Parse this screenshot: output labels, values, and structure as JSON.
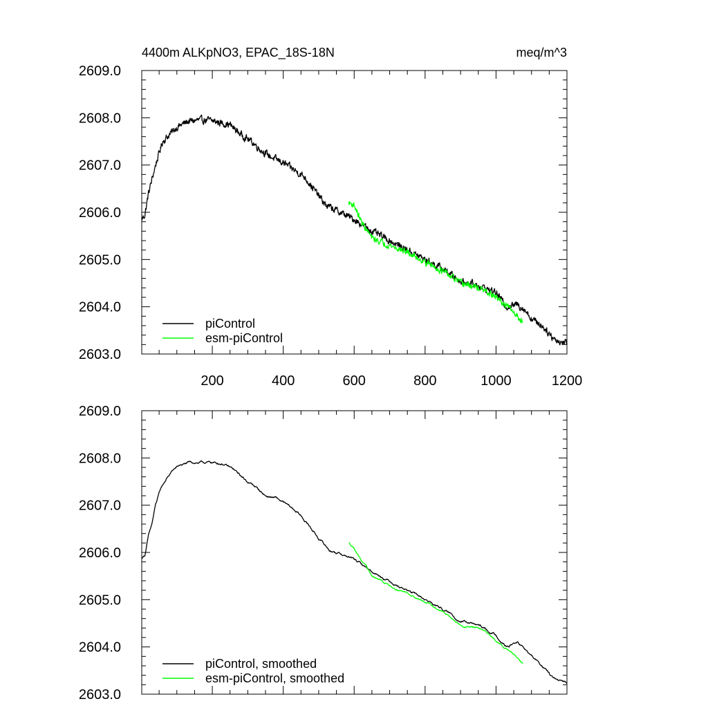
{
  "chart_data": [
    {
      "type": "line",
      "title": "4400m ALKpNO3, EPAC_18S-18N",
      "units": "meq/m^3",
      "xlabel": "",
      "ylabel": "",
      "xlim": [
        1,
        1200
      ],
      "ylim": [
        2603.0,
        2609.0
      ],
      "x_ticks": [
        200,
        400,
        600,
        800,
        1000,
        1200
      ],
      "x_tick_labels": [
        "200",
        "400",
        "600",
        "800",
        "1000",
        "1200"
      ],
      "y_ticks": [
        2603.0,
        2604.0,
        2605.0,
        2606.0,
        2607.0,
        2608.0,
        2609.0
      ],
      "y_tick_labels": [
        "2603.0",
        "2604.0",
        "2605.0",
        "2606.0",
        "2607.0",
        "2608.0",
        "2609.0"
      ],
      "legend_position": "bottom-left",
      "series": [
        {
          "name": "piControl",
          "color": "#000000",
          "noise": 0.11,
          "points": [
            [
              1,
              2605.85
            ],
            [
              10,
              2605.95
            ],
            [
              20,
              2606.4
            ],
            [
              30,
              2606.7
            ],
            [
              40,
              2607.0
            ],
            [
              50,
              2607.25
            ],
            [
              60,
              2607.5
            ],
            [
              80,
              2607.65
            ],
            [
              100,
              2607.8
            ],
            [
              130,
              2607.92
            ],
            [
              160,
              2607.95
            ],
            [
              190,
              2607.95
            ],
            [
              220,
              2607.9
            ],
            [
              250,
              2607.85
            ],
            [
              280,
              2607.65
            ],
            [
              310,
              2607.5
            ],
            [
              340,
              2607.3
            ],
            [
              370,
              2607.15
            ],
            [
              400,
              2607.05
            ],
            [
              430,
              2606.9
            ],
            [
              460,
              2606.75
            ],
            [
              490,
              2606.45
            ],
            [
              520,
              2606.15
            ],
            [
              560,
              2606.0
            ],
            [
              600,
              2605.85
            ],
            [
              650,
              2605.6
            ],
            [
              700,
              2605.4
            ],
            [
              750,
              2605.2
            ],
            [
              800,
              2605.0
            ],
            [
              850,
              2604.8
            ],
            [
              900,
              2604.55
            ],
            [
              950,
              2604.45
            ],
            [
              1000,
              2604.3
            ],
            [
              1030,
              2604.0
            ],
            [
              1060,
              2604.05
            ],
            [
              1080,
              2603.95
            ],
            [
              1100,
              2603.75
            ],
            [
              1130,
              2603.6
            ],
            [
              1160,
              2603.35
            ],
            [
              1180,
              2603.25
            ],
            [
              1200,
              2603.25
            ]
          ]
        },
        {
          "name": "esm-piControl",
          "color": "#00ff00",
          "noise": 0.1,
          "points": [
            [
              585,
              2606.2
            ],
            [
              600,
              2606.15
            ],
            [
              620,
              2605.8
            ],
            [
              650,
              2605.45
            ],
            [
              700,
              2605.3
            ],
            [
              750,
              2605.15
            ],
            [
              800,
              2604.95
            ],
            [
              850,
              2604.75
            ],
            [
              900,
              2604.5
            ],
            [
              950,
              2604.4
            ],
            [
              1000,
              2604.2
            ],
            [
              1040,
              2603.95
            ],
            [
              1075,
              2603.7
            ]
          ]
        }
      ]
    },
    {
      "type": "line",
      "title": "",
      "xlabel": "",
      "ylabel": "",
      "xlim": [
        1,
        1200
      ],
      "ylim": [
        2603.0,
        2609.0
      ],
      "y_ticks": [
        2603.0,
        2604.0,
        2605.0,
        2606.0,
        2607.0,
        2608.0,
        2609.0
      ],
      "y_tick_labels": [
        "2603.0",
        "2604.0",
        "2605.0",
        "2606.0",
        "2607.0",
        "2608.0",
        "2609.0"
      ],
      "legend_position": "bottom-left",
      "series": [
        {
          "name": "piControl, smoothed",
          "color": "#000000",
          "noise": 0.035,
          "points": [
            [
              1,
              2605.88
            ],
            [
              10,
              2605.95
            ],
            [
              20,
              2606.35
            ],
            [
              30,
              2606.6
            ],
            [
              40,
              2607.0
            ],
            [
              55,
              2607.35
            ],
            [
              70,
              2607.55
            ],
            [
              90,
              2607.75
            ],
            [
              110,
              2607.85
            ],
            [
              140,
              2607.9
            ],
            [
              170,
              2607.9
            ],
            [
              200,
              2607.9
            ],
            [
              230,
              2607.88
            ],
            [
              260,
              2607.75
            ],
            [
              290,
              2607.55
            ],
            [
              320,
              2607.4
            ],
            [
              350,
              2607.2
            ],
            [
              380,
              2607.15
            ],
            [
              410,
              2607.0
            ],
            [
              440,
              2606.85
            ],
            [
              470,
              2606.6
            ],
            [
              500,
              2606.3
            ],
            [
              530,
              2606.05
            ],
            [
              570,
              2605.95
            ],
            [
              600,
              2605.85
            ],
            [
              650,
              2605.6
            ],
            [
              700,
              2605.4
            ],
            [
              750,
              2605.2
            ],
            [
              800,
              2605.0
            ],
            [
              850,
              2604.8
            ],
            [
              900,
              2604.55
            ],
            [
              950,
              2604.45
            ],
            [
              1000,
              2604.25
            ],
            [
              1030,
              2604.0
            ],
            [
              1060,
              2604.1
            ],
            [
              1080,
              2603.95
            ],
            [
              1100,
              2603.8
            ],
            [
              1130,
              2603.6
            ],
            [
              1160,
              2603.35
            ],
            [
              1180,
              2603.25
            ],
            [
              1200,
              2603.25
            ]
          ]
        },
        {
          "name": "esm-piControl, smoothed",
          "color": "#00ff00",
          "noise": 0.03,
          "points": [
            [
              585,
              2606.2
            ],
            [
              600,
              2606.1
            ],
            [
              620,
              2605.85
            ],
            [
              650,
              2605.5
            ],
            [
              700,
              2605.3
            ],
            [
              750,
              2605.15
            ],
            [
              800,
              2604.95
            ],
            [
              850,
              2604.75
            ],
            [
              900,
              2604.45
            ],
            [
              950,
              2604.4
            ],
            [
              1000,
              2604.15
            ],
            [
              1040,
              2603.9
            ],
            [
              1075,
              2603.65
            ]
          ]
        }
      ]
    }
  ]
}
